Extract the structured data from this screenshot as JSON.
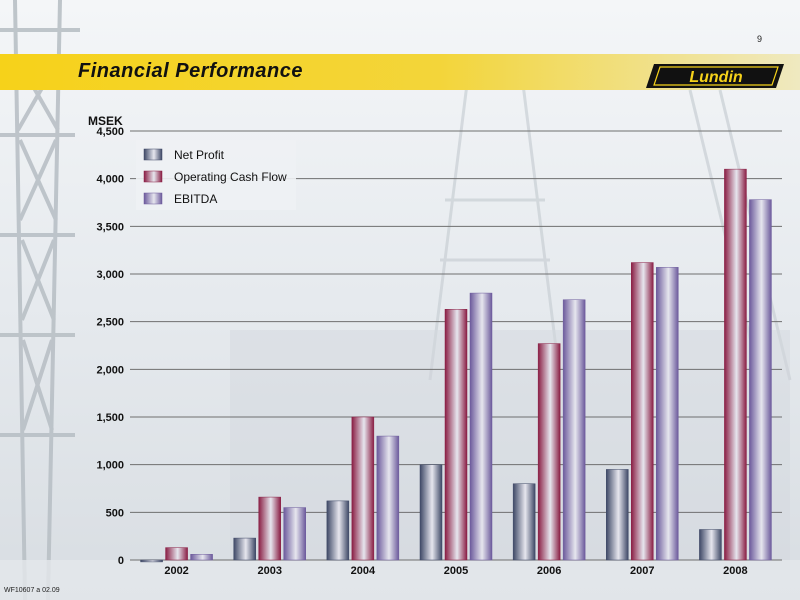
{
  "page": {
    "number": "9",
    "title": "Financial Performance",
    "footer_code": "WF10607 a 02.09"
  },
  "logo": {
    "text": "Lundin"
  },
  "colors": {
    "banner": "#f6d21a",
    "net_profit": "#3e4866",
    "operating_cash_flow": "#8a1e44",
    "ebitda": "#6c5a9c"
  },
  "chart_data": {
    "type": "bar",
    "title": "",
    "ylabel": "MSEK",
    "xlabel": "",
    "ylim": [
      0,
      4500
    ],
    "yticks": [
      0,
      500,
      1000,
      1500,
      2000,
      2500,
      3000,
      3500,
      4000,
      4500
    ],
    "ytick_labels": [
      "0",
      "500",
      "1,000",
      "1,500",
      "2,000",
      "2,500",
      "3,000",
      "3,500",
      "4,000",
      "4,500"
    ],
    "grid": true,
    "legend_position": "top-left",
    "categories": [
      "2002",
      "2003",
      "2004",
      "2005",
      "2006",
      "2007",
      "2008"
    ],
    "series": [
      {
        "name": "Net Profit",
        "color": "#3e4866",
        "values": [
          -20,
          230,
          620,
          1000,
          800,
          950,
          320
        ]
      },
      {
        "name": "Operating Cash Flow",
        "color": "#8a1e44",
        "values": [
          130,
          660,
          1500,
          2630,
          2270,
          3120,
          4100
        ]
      },
      {
        "name": "EBITDA",
        "color": "#6c5a9c",
        "values": [
          60,
          550,
          1300,
          2800,
          2730,
          3070,
          3780
        ]
      }
    ]
  }
}
